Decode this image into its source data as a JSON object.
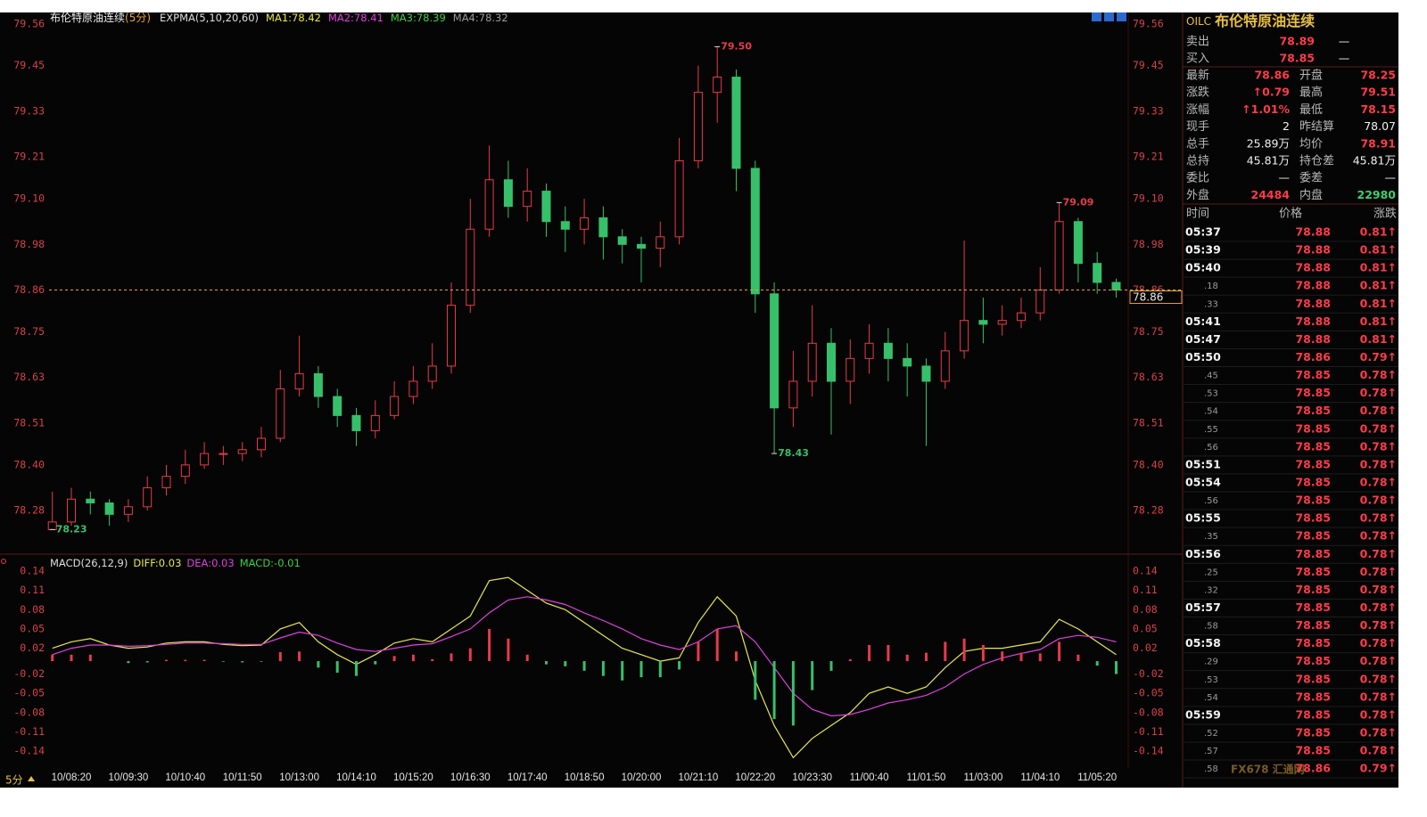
{
  "chart_data": [
    {
      "type": "candlestick",
      "header": {
        "title": "布伦特原油连续",
        "period": "(5分)",
        "indicators": [
          {
            "label": "EXPMA(5,10,20,60)",
            "color": "#dddddd"
          },
          {
            "label": "MA1:78.42",
            "color": "#e8e84a"
          },
          {
            "label": "MA2:78.41",
            "color": "#e040e0"
          },
          {
            "label": "MA3:78.39",
            "color": "#40d040"
          },
          {
            "label": "MA4:78.32",
            "color": "#9a9a9a"
          }
        ]
      },
      "categories": [
        null,
        "10/08:20",
        null,
        null,
        "10/09:30",
        null,
        null,
        "10/10:40",
        null,
        null,
        "10/11:50",
        null,
        null,
        "10/13:00",
        null,
        null,
        "10/14:10",
        null,
        null,
        "10/15:20",
        null,
        null,
        "10/16:30",
        null,
        null,
        "10/17:40",
        null,
        null,
        "10/18:50",
        null,
        null,
        "10/20:00",
        null,
        null,
        "10/21:10",
        null,
        null,
        "10/22:20",
        null,
        null,
        "10/23:30",
        null,
        null,
        "11/00:40",
        null,
        null,
        "11/01:50",
        null,
        null,
        "11/03:00",
        null,
        null,
        "11/04:10",
        null,
        null,
        "11/05:20",
        null
      ],
      "open": [
        78.23,
        78.25,
        78.31,
        78.3,
        78.27,
        78.29,
        78.34,
        78.37,
        78.4,
        78.43,
        78.43,
        78.44,
        78.47,
        78.6,
        78.64,
        78.58,
        78.53,
        78.49,
        78.53,
        78.58,
        78.62,
        78.66,
        78.82,
        79.02,
        79.15,
        79.08,
        79.12,
        79.04,
        79.02,
        79.05,
        79.0,
        78.98,
        78.97,
        79.0,
        79.2,
        79.38,
        79.42,
        79.18,
        78.85,
        78.55,
        78.62,
        78.72,
        78.62,
        78.68,
        78.72,
        78.68,
        78.66,
        78.62,
        78.7,
        78.78,
        78.77,
        78.78,
        78.8,
        78.86,
        79.04,
        78.93,
        78.88
      ],
      "high": [
        78.33,
        78.34,
        78.33,
        78.31,
        78.31,
        78.37,
        78.4,
        78.44,
        78.46,
        78.45,
        78.46,
        78.5,
        78.65,
        78.74,
        78.66,
        78.6,
        78.55,
        78.57,
        78.62,
        78.66,
        78.72,
        78.88,
        79.1,
        79.24,
        79.2,
        79.18,
        79.14,
        79.08,
        79.1,
        79.08,
        79.02,
        79.0,
        79.04,
        79.26,
        79.45,
        79.5,
        79.44,
        79.2,
        78.88,
        78.7,
        78.82,
        78.76,
        78.73,
        78.77,
        78.76,
        78.72,
        78.68,
        78.75,
        78.99,
        78.84,
        78.82,
        78.84,
        78.92,
        79.09,
        79.05,
        78.96,
        78.89
      ],
      "low": [
        78.23,
        78.24,
        78.27,
        78.24,
        78.25,
        78.28,
        78.32,
        78.35,
        78.39,
        78.4,
        78.41,
        78.42,
        78.46,
        78.58,
        78.55,
        78.5,
        78.45,
        78.47,
        78.52,
        78.56,
        78.6,
        78.64,
        78.8,
        79.0,
        79.05,
        79.04,
        79.0,
        78.96,
        78.98,
        78.94,
        78.93,
        78.88,
        78.92,
        78.98,
        79.18,
        79.3,
        79.12,
        78.8,
        78.43,
        78.5,
        78.58,
        78.48,
        78.56,
        78.64,
        78.62,
        78.58,
        78.45,
        78.6,
        78.68,
        78.72,
        78.74,
        78.76,
        78.78,
        78.85,
        78.88,
        78.85,
        78.84
      ],
      "close": [
        78.25,
        78.31,
        78.3,
        78.27,
        78.29,
        78.34,
        78.37,
        78.4,
        78.43,
        78.43,
        78.44,
        78.47,
        78.6,
        78.64,
        78.58,
        78.53,
        78.49,
        78.53,
        78.58,
        78.62,
        78.66,
        78.82,
        79.02,
        79.15,
        79.08,
        79.12,
        79.04,
        79.02,
        79.05,
        79.0,
        78.98,
        78.97,
        79.0,
        79.2,
        79.38,
        79.42,
        79.18,
        78.85,
        78.55,
        78.62,
        78.72,
        78.62,
        78.68,
        78.72,
        78.68,
        78.66,
        78.62,
        78.7,
        78.78,
        78.77,
        78.78,
        78.8,
        78.86,
        79.04,
        78.93,
        78.88,
        78.86
      ],
      "up_color": "#e83a4a",
      "down_color": "#36c06a",
      "annotations": [
        {
          "value": 79.5,
          "label": "79.50"
        },
        78.43,
        79.09,
        78.23
      ],
      "last_price": 78.86,
      "last_price_color": "#e8a040",
      "ylim": [
        78.17,
        79.59
      ],
      "yticks": [
        79.56,
        79.45,
        79.33,
        79.21,
        {
          "value": 79.1,
          "label": "79.10"
        },
        78.98,
        78.86,
        78.75,
        78.63,
        78.51,
        {
          "value": 78.4,
          "label": "78.40"
        },
        78.28
      ],
      "grid": false,
      "period_button": "5分"
    },
    {
      "type": "macd",
      "header": [
        {
          "label": "MACD(26,12,9)",
          "color": "#dddddd"
        },
        {
          "label": "DIFF:0.03",
          "color": "#e8e84a"
        },
        {
          "label": "DEA:0.03",
          "color": "#e040e0"
        },
        {
          "label": "MACD:-0.01",
          "color": "#40d040"
        }
      ],
      "series": [
        {
          "name": "DIFF",
          "color": "#e8e84a",
          "values": [
            0.02,
            0.03,
            0.035,
            0.025,
            0.02,
            0.022,
            0.028,
            0.03,
            0.03,
            0.026,
            0.024,
            0.025,
            0.05,
            0.06,
            0.03,
            0.01,
            -0.005,
            0.01,
            0.028,
            0.035,
            0.03,
            0.05,
            0.07,
            0.125,
            0.13,
            0.11,
            0.09,
            0.08,
            0.06,
            0.04,
            0.02,
            0.01,
            0.0,
            0.005,
            0.06,
            0.1,
            0.07,
            -0.03,
            -0.1,
            -0.15,
            -0.12,
            -0.1,
            -0.08,
            -0.05,
            -0.04,
            -0.05,
            -0.04,
            -0.01,
            0.015,
            0.02,
            0.02,
            0.025,
            0.03,
            0.065,
            0.05,
            0.03,
            0.01
          ]
        },
        {
          "name": "DEA",
          "color": "#e040e0",
          "values": [
            0.01,
            0.02,
            0.025,
            0.025,
            0.023,
            0.024,
            0.026,
            0.028,
            0.028,
            0.027,
            0.026,
            0.026,
            0.036,
            0.045,
            0.04,
            0.028,
            0.018,
            0.015,
            0.02,
            0.025,
            0.027,
            0.038,
            0.05,
            0.075,
            0.095,
            0.1,
            0.095,
            0.088,
            0.075,
            0.063,
            0.05,
            0.035,
            0.025,
            0.018,
            0.03,
            0.05,
            0.055,
            0.03,
            -0.01,
            -0.05,
            -0.075,
            -0.085,
            -0.083,
            -0.075,
            -0.065,
            -0.06,
            -0.053,
            -0.04,
            -0.02,
            -0.005,
            0.005,
            0.012,
            0.018,
            0.035,
            0.04,
            0.037,
            0.03
          ]
        },
        {
          "name": "MACD",
          "up_color": "#e83a4a",
          "down_color": "#36c06a",
          "values": [
            0.01,
            0.01,
            0.01,
            0.0,
            -0.003,
            -0.002,
            0.002,
            0.002,
            0.002,
            -0.001,
            -0.002,
            -0.001,
            0.014,
            0.015,
            -0.01,
            -0.018,
            -0.023,
            -0.005,
            0.008,
            0.01,
            0.003,
            0.012,
            0.02,
            0.05,
            0.035,
            0.01,
            -0.005,
            -0.008,
            -0.015,
            -0.023,
            -0.03,
            -0.025,
            -0.025,
            -0.013,
            0.03,
            0.05,
            0.015,
            -0.06,
            -0.09,
            -0.1,
            -0.045,
            -0.015,
            0.003,
            0.025,
            0.025,
            0.01,
            0.013,
            0.03,
            0.035,
            0.025,
            0.015,
            0.013,
            0.012,
            0.03,
            0.01,
            -0.007,
            -0.02
          ]
        }
      ],
      "ylim": [
        -0.166,
        0.162
      ],
      "yticks": [
        0.14,
        0.11,
        0.08,
        0.05,
        0.02,
        -0.02,
        -0.05,
        -0.08,
        -0.11,
        -0.14
      ]
    }
  ],
  "quote": {
    "code": "OILC",
    "name": "布伦特原油连续",
    "bid_ask": [
      [
        "卖出",
        "78.89",
        "—"
      ],
      [
        "买入",
        "78.85",
        "—"
      ]
    ],
    "stats": [
      [
        "最新",
        "78.86",
        "开盘",
        "78.25"
      ],
      [
        "涨跌",
        "↑0.79",
        "最高",
        "79.51"
      ],
      [
        "涨幅",
        "↑1.01%",
        "最低",
        "78.15"
      ],
      [
        "现手",
        "2",
        "昨结算",
        "78.07"
      ],
      [
        "总手",
        "25.89万",
        "均价",
        "78.91"
      ],
      [
        "总持",
        "45.81万",
        "持仓差",
        "45.81万"
      ],
      [
        "委比",
        "—",
        "委差",
        "—"
      ],
      [
        "外盘",
        "24484",
        "内盘",
        "22980"
      ]
    ],
    "trade_header": [
      "时间",
      "价格",
      "涨跌"
    ],
    "trades": [
      [
        "05:37",
        "78.88",
        "0.81↑"
      ],
      [
        "05:39",
        "78.88",
        "0.81↑"
      ],
      [
        "05:40",
        "78.88",
        "0.81↑"
      ],
      [
        ".18",
        "78.88",
        "0.81↑"
      ],
      [
        ".33",
        "78.88",
        "0.81↑"
      ],
      [
        "05:41",
        "78.88",
        "0.81↑"
      ],
      [
        "05:47",
        "78.88",
        "0.81↑"
      ],
      [
        "05:50",
        "78.86",
        "0.79↑"
      ],
      [
        ".45",
        "78.85",
        "0.78↑"
      ],
      [
        ".53",
        "78.85",
        "0.78↑"
      ],
      [
        ".54",
        "78.85",
        "0.78↑"
      ],
      [
        ".55",
        "78.85",
        "0.78↑"
      ],
      [
        ".56",
        "78.85",
        "0.78↑"
      ],
      [
        "05:51",
        "78.85",
        "0.78↑"
      ],
      [
        "05:54",
        "78.85",
        "0.78↑"
      ],
      [
        ".56",
        "78.85",
        "0.78↑"
      ],
      [
        "05:55",
        "78.85",
        "0.78↑"
      ],
      [
        ".35",
        "78.85",
        "0.78↑"
      ],
      [
        "05:56",
        "78.85",
        "0.78↑"
      ],
      [
        ".25",
        "78.85",
        "0.78↑"
      ],
      [
        ".32",
        "78.85",
        "0.78↑"
      ],
      [
        "05:57",
        "78.85",
        "0.78↑"
      ],
      [
        ".58",
        "78.85",
        "0.78↑"
      ],
      [
        "05:58",
        "78.85",
        "0.78↑"
      ],
      [
        ".29",
        "78.85",
        "0.78↑"
      ],
      [
        ".53",
        "78.85",
        "0.78↑"
      ],
      [
        ".54",
        "78.85",
        "0.78↑"
      ],
      [
        "05:59",
        "78.85",
        "0.78↑"
      ],
      [
        ".52",
        "78.85",
        "0.78↑"
      ],
      [
        ".57",
        "78.85",
        "0.78↑"
      ],
      [
        ".58",
        "78.86",
        "0.79↑"
      ]
    ]
  },
  "watermark": "FX678 汇通网"
}
